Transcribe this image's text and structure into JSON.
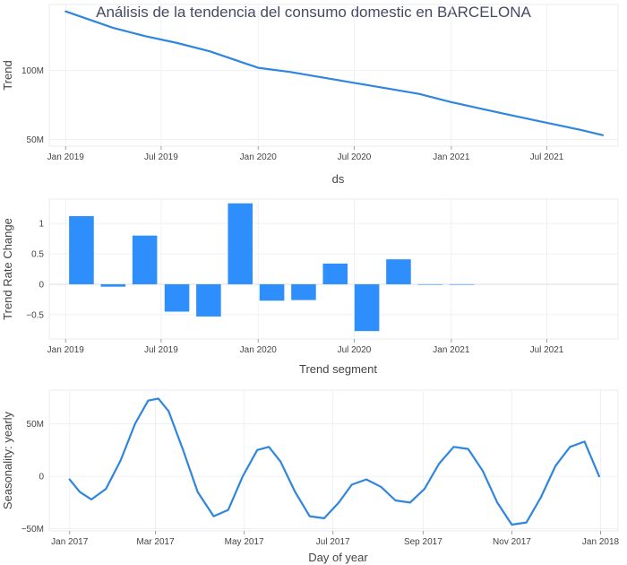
{
  "title": "Análisis de la tendencia del consumo domestic en BARCELONA",
  "chart_data": [
    {
      "type": "line",
      "title": "Análisis de la tendencia del consumo domestic en BARCELONA",
      "xlabel": "ds",
      "ylabel": "Trend",
      "color": "#2e86de",
      "grid": true,
      "x_tick_labels": [
        "Jan 2019",
        "Jul 2019",
        "Jan 2020",
        "Jul 2020",
        "Jan 2021",
        "Jul 2021"
      ],
      "y_tick_labels": [
        "50M",
        "100M"
      ],
      "series": [
        {
          "x": [
            "2019-01-01",
            "2019-04-01",
            "2019-06-01",
            "2019-08-01",
            "2019-10-01",
            "2019-12-01",
            "2020-01-01",
            "2020-03-01",
            "2020-05-01",
            "2020-07-01",
            "2020-09-01",
            "2020-11-01",
            "2021-01-01",
            "2021-03-01",
            "2021-05-01",
            "2021-07-01",
            "2021-09-01",
            "2021-10-15"
          ],
          "y": [
            143,
            131,
            125,
            120,
            114,
            106,
            102,
            99,
            95,
            91,
            87,
            83,
            77,
            72,
            67,
            62,
            57,
            53
          ]
        }
      ]
    },
    {
      "type": "bar",
      "xlabel": "Trend segment",
      "ylabel": "Trend Rate Change",
      "color": "#2e8efc",
      "grid": true,
      "ylim": [
        -0.9,
        1.4
      ],
      "x_tick_labels": [
        "Jan 2019",
        "Jul 2019",
        "Jan 2020",
        "Jul 2020",
        "Jan 2021",
        "Jul 2021"
      ],
      "y_tick_labels": [
        "−0.5",
        "0",
        "0.5",
        "1"
      ],
      "series": [
        {
          "x": [
            "2019-01-01",
            "2019-03-02",
            "2019-05-01",
            "2019-07-01",
            "2019-08-30",
            "2019-10-29",
            "2019-12-28",
            "2020-02-26",
            "2020-04-26",
            "2020-06-25",
            "2020-08-24",
            "2020-10-23",
            "2020-12-22"
          ],
          "y": [
            1.12,
            -0.04,
            0.8,
            -0.45,
            -0.53,
            1.33,
            -0.27,
            -0.26,
            0.34,
            -0.77,
            0.41,
            0,
            0
          ]
        }
      ]
    },
    {
      "type": "line",
      "xlabel": "Day of year",
      "ylabel": "Seasonality: yearly",
      "color": "#2e86de",
      "grid": true,
      "x_tick_labels": [
        "Jan 2017",
        "Mar 2017",
        "May 2017",
        "Jul 2017",
        "Sep 2017",
        "Nov 2017",
        "Jan 2018"
      ],
      "y_tick_labels": [
        "−50M",
        "0",
        "50M"
      ],
      "series": [
        {
          "x": [
            "2017-01-01",
            "2017-01-08",
            "2017-01-16",
            "2017-01-26",
            "2017-02-05",
            "2017-02-15",
            "2017-02-24",
            "2017-03-03",
            "2017-03-10",
            "2017-03-20",
            "2017-03-30",
            "2017-04-10",
            "2017-04-20",
            "2017-04-30",
            "2017-05-10",
            "2017-05-18",
            "2017-05-26",
            "2017-06-05",
            "2017-06-15",
            "2017-06-25",
            "2017-07-05",
            "2017-07-14",
            "2017-07-24",
            "2017-08-03",
            "2017-08-13",
            "2017-08-23",
            "2017-09-02",
            "2017-09-12",
            "2017-09-22",
            "2017-10-02",
            "2017-10-12",
            "2017-10-22",
            "2017-11-01",
            "2017-11-11",
            "2017-11-21",
            "2017-12-01",
            "2017-12-11",
            "2017-12-21",
            "2017-12-31"
          ],
          "y": [
            -3,
            -15,
            -22,
            -12,
            15,
            50,
            72,
            74,
            62,
            25,
            -15,
            -38,
            -32,
            0,
            25,
            28,
            14,
            -15,
            -38,
            -40,
            -25,
            -8,
            -3,
            -10,
            -23,
            -25,
            -12,
            12,
            28,
            26,
            5,
            -25,
            -46,
            -44,
            -20,
            10,
            28,
            33,
            0
          ]
        }
      ]
    }
  ]
}
